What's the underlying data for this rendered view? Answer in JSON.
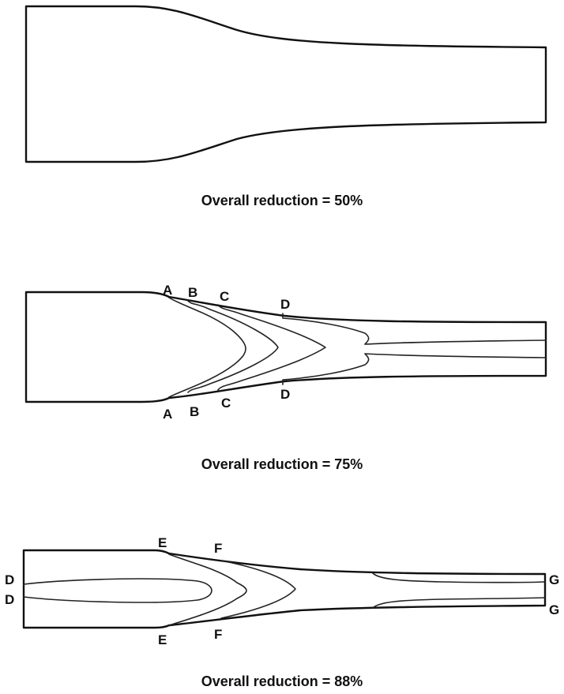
{
  "panels": [
    {
      "caption": "Overall reduction = 50%",
      "labels": {}
    },
    {
      "caption": "Overall reduction = 75%",
      "labels": {
        "a_top": "A",
        "b_top": "B",
        "c_top": "C",
        "d_top": "D",
        "a_bottom": "A",
        "b_bottom": "B",
        "c_bottom": "C",
        "d_bottom": "D"
      }
    },
    {
      "caption": "Overall reduction = 88%",
      "labels": {
        "d_left_top": "D",
        "d_left_bottom": "D",
        "e_top": "E",
        "f_top": "F",
        "e_bottom": "E",
        "f_bottom": "F",
        "g_top": "G",
        "g_bottom": "G"
      }
    }
  ]
}
